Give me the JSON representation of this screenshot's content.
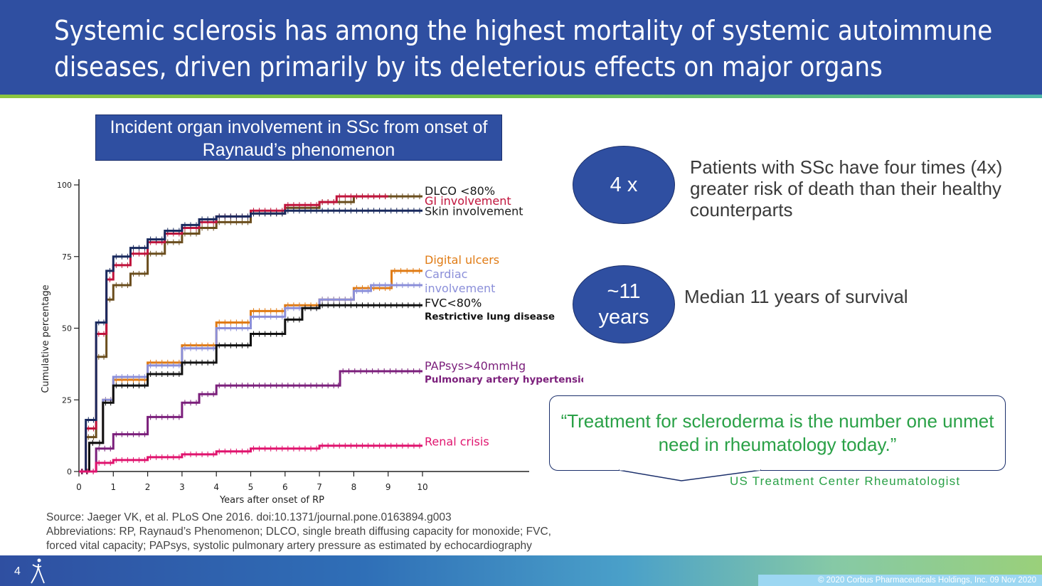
{
  "slide": {
    "title": "Systemic sclerosis has among the highest mortality of systemic autoimmune diseases, driven primarily by its deleterious effects on major organs",
    "chart_title": "Incident organ involvement in SSc from onset of Raynaud’s phenomenon",
    "stats": [
      {
        "value": "4 x",
        "text": "Patients with SSc have four times (4x) greater risk of death than their healthy counterparts"
      },
      {
        "value_line1": "~11",
        "value_line2": "years",
        "text": "Median 11 years of survival"
      }
    ],
    "quote": "“Treatment for scleroderma is the number one unmet need in rheumatology today.”",
    "quote_author": "US Treatment Center Rheumatologist",
    "source_lines": [
      "Source: Jaeger VK, et al. PLoS One 2016. doi:10.1371/journal.pone.0163894.g003",
      "Abbreviations: RP, Raynaud’s Phenomenon; DLCO, single breath diffusing capacity for monoxide; FVC,",
      "forced vital capacity; PAPsys, systolic pulmonary artery pressure as estimated by echocardiography"
    ],
    "page_number": "4",
    "copyright": "© 2020 Corbus Pharmaceuticals Holdings, Inc. 09 Nov 2020",
    "colors": {
      "brand_blue": "#2f4fa1",
      "quote_green": "#2aa147"
    }
  },
  "chart_data": {
    "type": "line",
    "xlabel": "Years after onset of RP",
    "ylabel": "Cumulative percentage",
    "xlim": [
      0,
      10
    ],
    "ylim": [
      0,
      100
    ],
    "xticks": [
      0,
      1,
      2,
      3,
      4,
      5,
      6,
      7,
      8,
      9,
      10
    ],
    "yticks": [
      0,
      25,
      50,
      75,
      100
    ],
    "series": [
      {
        "name": "DLCO <80%",
        "color": "#6b4e1e",
        "label_color": "#1a1a1a",
        "points": [
          [
            0,
            0
          ],
          [
            0.2,
            12
          ],
          [
            0.5,
            40
          ],
          [
            0.8,
            60
          ],
          [
            1,
            65
          ],
          [
            1.5,
            69
          ],
          [
            2,
            76
          ],
          [
            2.5,
            80
          ],
          [
            3,
            83
          ],
          [
            3.5,
            85
          ],
          [
            4,
            87
          ],
          [
            5,
            90
          ],
          [
            6,
            92
          ],
          [
            7,
            94
          ],
          [
            8,
            96
          ],
          [
            9,
            96
          ],
          [
            10,
            96
          ]
        ]
      },
      {
        "name": "GI involvement",
        "color": "#c0143c",
        "label_color": "#c0143c",
        "points": [
          [
            0,
            0
          ],
          [
            0.2,
            15
          ],
          [
            0.5,
            48
          ],
          [
            0.8,
            67
          ],
          [
            1,
            72
          ],
          [
            1.5,
            76
          ],
          [
            2,
            80
          ],
          [
            2.5,
            83
          ],
          [
            3,
            85
          ],
          [
            3.5,
            87
          ],
          [
            4,
            89
          ],
          [
            5,
            91
          ],
          [
            6,
            93
          ],
          [
            7,
            94
          ],
          [
            7.5,
            96
          ],
          [
            9,
            96
          ]
        ]
      },
      {
        "name": "Skin involvement",
        "color": "#1a2a5e",
        "label_color": "#1a1a1a",
        "points": [
          [
            0,
            0
          ],
          [
            0.2,
            18
          ],
          [
            0.5,
            52
          ],
          [
            0.8,
            70
          ],
          [
            1,
            75
          ],
          [
            1.5,
            78
          ],
          [
            2,
            81
          ],
          [
            2.5,
            84
          ],
          [
            3,
            86
          ],
          [
            3.5,
            88
          ],
          [
            4,
            89
          ],
          [
            5,
            90
          ],
          [
            6,
            91
          ],
          [
            7,
            91
          ],
          [
            8,
            91
          ],
          [
            10,
            91
          ]
        ]
      },
      {
        "name": "Digital ulcers",
        "color": "#e07b14",
        "label_color": "#e07b14",
        "points": [
          [
            0,
            0
          ],
          [
            0.3,
            10
          ],
          [
            0.7,
            25
          ],
          [
            1,
            32
          ],
          [
            2,
            38
          ],
          [
            3,
            44
          ],
          [
            4,
            52
          ],
          [
            5,
            56
          ],
          [
            6,
            58
          ],
          [
            7,
            60
          ],
          [
            8,
            64
          ],
          [
            9,
            64
          ],
          [
            9.1,
            70
          ],
          [
            10,
            70
          ]
        ]
      },
      {
        "name": "Cardiac involvement",
        "color": "#8b8fd9",
        "label_color": "#8b8fd9",
        "points": [
          [
            0,
            0
          ],
          [
            0.3,
            10
          ],
          [
            0.7,
            25
          ],
          [
            1,
            33
          ],
          [
            2,
            37
          ],
          [
            3,
            43
          ],
          [
            4,
            50
          ],
          [
            5,
            54
          ],
          [
            6,
            57
          ],
          [
            7,
            60
          ],
          [
            8,
            63
          ],
          [
            8.5,
            65
          ],
          [
            9,
            65
          ],
          [
            10,
            65
          ]
        ]
      },
      {
        "name": "FVC<80%",
        "sublabel": "Restrictive lung disease",
        "color": "#111111",
        "label_color": "#111111",
        "points": [
          [
            0,
            0
          ],
          [
            0.3,
            10
          ],
          [
            0.7,
            24
          ],
          [
            1,
            30
          ],
          [
            2,
            34
          ],
          [
            3,
            38
          ],
          [
            4,
            44
          ],
          [
            5,
            48
          ],
          [
            6,
            53
          ],
          [
            6.5,
            57
          ],
          [
            7,
            58
          ],
          [
            8,
            58
          ],
          [
            10,
            58
          ]
        ]
      },
      {
        "name": "PAPsys>40mmHg",
        "sublabel": "Pulmonary artery hypertension",
        "color": "#7b1f7b",
        "label_color": "#7b1f7b",
        "points": [
          [
            0,
            0
          ],
          [
            0.5,
            8
          ],
          [
            1,
            13
          ],
          [
            2,
            19
          ],
          [
            3,
            24
          ],
          [
            3.5,
            27
          ],
          [
            4,
            30
          ],
          [
            5,
            30
          ],
          [
            6,
            30
          ],
          [
            7,
            30
          ],
          [
            7.5,
            30
          ],
          [
            7.6,
            35
          ],
          [
            10,
            35
          ]
        ]
      },
      {
        "name": "Renal crisis",
        "color": "#e0146e",
        "label_color": "#e0146e",
        "points": [
          [
            0,
            0
          ],
          [
            0.5,
            3
          ],
          [
            1,
            4
          ],
          [
            2,
            5
          ],
          [
            3,
            6
          ],
          [
            4,
            7
          ],
          [
            5,
            8
          ],
          [
            6,
            8
          ],
          [
            7,
            9
          ],
          [
            8,
            9
          ],
          [
            10,
            9
          ]
        ]
      }
    ]
  }
}
